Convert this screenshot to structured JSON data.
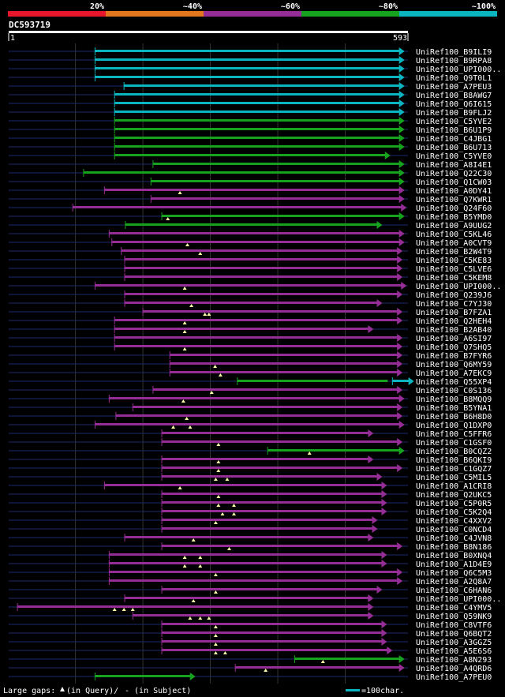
{
  "chart_data": {
    "type": "alignment-overview",
    "query": {
      "name": "DC593719",
      "start": 1,
      "end": 593
    },
    "identity_legend": [
      {
        "label": "20%",
        "color": "#e8162c"
      },
      {
        "label": "~40%",
        "color": "#e2761f"
      },
      {
        "label": "~60%",
        "color": "#952d96"
      },
      {
        "label": "~80%",
        "color": "#16a21e"
      },
      {
        "label": "~100%",
        "color": "#0ab5c0"
      }
    ],
    "hits": [
      {
        "name": "UniRef100_B9ILI9",
        "color": "#0ab5c0",
        "segs": [
          [
            129,
            588
          ]
        ],
        "tris": []
      },
      {
        "name": "UniRef100_B9RPA8",
        "color": "#0ab5c0",
        "segs": [
          [
            129,
            588
          ]
        ],
        "tris": []
      },
      {
        "name": "UniRef100_UPI000..",
        "color": "#0ab5c0",
        "segs": [
          [
            129,
            588
          ]
        ],
        "tris": []
      },
      {
        "name": "UniRef100_Q9T0L1",
        "color": "#0ab5c0",
        "segs": [
          [
            129,
            588
          ]
        ],
        "tris": []
      },
      {
        "name": "UniRef100_A7PEU3",
        "color": "#0ab5c0",
        "segs": [
          [
            172,
            588
          ]
        ],
        "tris": []
      },
      {
        "name": "UniRef100_B8AWG7",
        "color": "#0ab5c0",
        "segs": [
          [
            158,
            588
          ]
        ],
        "tris": []
      },
      {
        "name": "UniRef100_Q6I615",
        "color": "#0ab5c0",
        "segs": [
          [
            158,
            588
          ]
        ],
        "tris": []
      },
      {
        "name": "UniRef100_B9FLJ2",
        "color": "#0ab5c0",
        "segs": [
          [
            158,
            588
          ]
        ],
        "tris": []
      },
      {
        "name": "UniRef100_C5YVE2",
        "color": "#16a21e",
        "segs": [
          [
            158,
            588
          ]
        ],
        "tris": []
      },
      {
        "name": "UniRef100_B6U1P9",
        "color": "#16a21e",
        "segs": [
          [
            158,
            588
          ]
        ],
        "tris": []
      },
      {
        "name": "UniRef100_C4JBG1",
        "color": "#16a21e",
        "segs": [
          [
            158,
            588
          ]
        ],
        "tris": []
      },
      {
        "name": "UniRef100_B6U713",
        "color": "#16a21e",
        "segs": [
          [
            158,
            588
          ]
        ],
        "tris": []
      },
      {
        "name": "UniRef100_C5YVE0",
        "color": "#16a21e",
        "segs": [
          [
            158,
            567
          ]
        ],
        "tris": []
      },
      {
        "name": "UniRef100_A8I4E1",
        "color": "#16a21e",
        "segs": [
          [
            215,
            588
          ]
        ],
        "tris": []
      },
      {
        "name": "UniRef100_Q22C30",
        "color": "#16a21e",
        "segs": [
          [
            112,
            588
          ]
        ],
        "tris": []
      },
      {
        "name": "UniRef100_Q1CW03",
        "color": "#16a21e",
        "segs": [
          [
            212,
            588
          ]
        ],
        "tris": []
      },
      {
        "name": "UniRef100_A0DY41",
        "color": "#952d96",
        "segs": [
          [
            143,
            588
          ]
        ],
        "tris": [
          255
        ]
      },
      {
        "name": "UniRef100_Q7KWR1",
        "color": "#952d96",
        "segs": [
          [
            212,
            588
          ]
        ],
        "tris": []
      },
      {
        "name": "UniRef100_Q24F60",
        "color": "#952d96",
        "segs": [
          [
            96,
            591
          ]
        ],
        "tris": []
      },
      {
        "name": "UniRef100_B5YMD0",
        "color": "#16a21e",
        "segs": [
          [
            228,
            588
          ]
        ],
        "tris": [
          237
        ]
      },
      {
        "name": "UniRef100_A9UUG2",
        "color": "#16a21e",
        "segs": [
          [
            174,
            555
          ]
        ],
        "tris": []
      },
      {
        "name": "UniRef100_C5KL46",
        "color": "#952d96",
        "segs": [
          [
            150,
            588
          ]
        ],
        "tris": []
      },
      {
        "name": "UniRef100_A0CVT9",
        "color": "#952d96",
        "segs": [
          [
            154,
            588
          ]
        ],
        "tris": [
          266
        ]
      },
      {
        "name": "UniRef100_B2W4T9",
        "color": "#952d96",
        "segs": [
          [
            168,
            585
          ]
        ],
        "tris": [
          285
        ]
      },
      {
        "name": "UniRef100_C5KE83",
        "color": "#952d96",
        "segs": [
          [
            173,
            585
          ]
        ],
        "tris": []
      },
      {
        "name": "UniRef100_C5LVE6",
        "color": "#952d96",
        "segs": [
          [
            173,
            585
          ]
        ],
        "tris": []
      },
      {
        "name": "UniRef100_C5KEM8",
        "color": "#952d96",
        "segs": [
          [
            173,
            585
          ]
        ],
        "tris": []
      },
      {
        "name": "UniRef100_UPI000..",
        "color": "#952d96",
        "segs": [
          [
            129,
            591
          ]
        ],
        "tris": [
          262
        ]
      },
      {
        "name": "UniRef100_Q239J6",
        "color": "#952d96",
        "segs": [
          [
            173,
            585
          ]
        ],
        "tris": []
      },
      {
        "name": "UniRef100_C7YJ30",
        "color": "#952d96",
        "segs": [
          [
            173,
            555
          ]
        ],
        "tris": [
          272
        ]
      },
      {
        "name": "UniRef100_B7FZA1",
        "color": "#952d96",
        "segs": [
          [
            200,
            585
          ]
        ],
        "tris": [
          292,
          298
        ]
      },
      {
        "name": "UniRef100_Q2HEH4",
        "color": "#952d96",
        "segs": [
          [
            158,
            585
          ]
        ],
        "tris": [
          262
        ]
      },
      {
        "name": "UniRef100_B2AB40",
        "color": "#952d96",
        "segs": [
          [
            158,
            542
          ]
        ],
        "tris": [
          262
        ]
      },
      {
        "name": "UniRef100_A6SI97",
        "color": "#952d96",
        "segs": [
          [
            158,
            585
          ]
        ],
        "tris": []
      },
      {
        "name": "UniRef100_Q7SHQ5",
        "color": "#952d96",
        "segs": [
          [
            158,
            585
          ]
        ],
        "tris": [
          262
        ]
      },
      {
        "name": "UniRef100_B7FYR6",
        "color": "#952d96",
        "segs": [
          [
            240,
            585
          ]
        ],
        "tris": []
      },
      {
        "name": "UniRef100_Q6MY59",
        "color": "#952d96",
        "segs": [
          [
            240,
            585
          ]
        ],
        "tris": [
          307
        ]
      },
      {
        "name": "UniRef100_A7EKC9",
        "color": "#952d96",
        "segs": [
          [
            240,
            585
          ]
        ],
        "tris": [
          315
        ]
      },
      {
        "name": "UniRef100_Q55XP4",
        "color": "#16a21e",
        "segs": [
          [
            340,
            570
          ],
          [
            570,
            602
          ]
        ],
        "segColors": [
          "#16a21e",
          "#0ab5c0"
        ],
        "tris": []
      },
      {
        "name": "UniRef100_C0S136",
        "color": "#952d96",
        "segs": [
          [
            215,
            585
          ]
        ],
        "tris": [
          302
        ]
      },
      {
        "name": "UniRef100_B8MQQ9",
        "color": "#952d96",
        "segs": [
          [
            150,
            588
          ]
        ],
        "tris": [
          260
        ]
      },
      {
        "name": "UniRef100_B5YNA1",
        "color": "#952d96",
        "segs": [
          [
            185,
            585
          ]
        ],
        "tris": []
      },
      {
        "name": "UniRef100_B6H8D0",
        "color": "#952d96",
        "segs": [
          [
            160,
            585
          ]
        ],
        "tris": [
          265
        ]
      },
      {
        "name": "UniRef100_Q1DXP0",
        "color": "#952d96",
        "segs": [
          [
            129,
            588
          ]
        ],
        "tris": [
          245,
          270
        ]
      },
      {
        "name": "UniRef100_C5FFR6",
        "color": "#952d96",
        "segs": [
          [
            228,
            542
          ]
        ],
        "tris": []
      },
      {
        "name": "UniRef100_C1GSF0",
        "color": "#952d96",
        "segs": [
          [
            228,
            585
          ]
        ],
        "tris": [
          312
        ]
      },
      {
        "name": "UniRef100_B0CQZ2",
        "color": "#16a21e",
        "segs": [
          [
            385,
            588
          ]
        ],
        "tris": [
          447
        ]
      },
      {
        "name": "UniRef100_B6QKI9",
        "color": "#952d96",
        "segs": [
          [
            228,
            542
          ]
        ],
        "tris": [
          312
        ]
      },
      {
        "name": "UniRef100_C1GQZ7",
        "color": "#952d96",
        "segs": [
          [
            228,
            585
          ]
        ],
        "tris": [
          312
        ]
      },
      {
        "name": "UniRef100_C5MIL5",
        "color": "#952d96",
        "segs": [
          [
            228,
            555
          ]
        ],
        "tris": [
          308,
          325
        ]
      },
      {
        "name": "UniRef100_A1CRI8",
        "color": "#952d96",
        "segs": [
          [
            143,
            562
          ]
        ],
        "tris": [
          255
        ]
      },
      {
        "name": "UniRef100_Q2UKC5",
        "color": "#952d96",
        "segs": [
          [
            228,
            562
          ]
        ],
        "tris": [
          312
        ]
      },
      {
        "name": "UniRef100_C5P0R5",
        "color": "#952d96",
        "segs": [
          [
            228,
            562
          ]
        ],
        "tris": [
          312,
          335
        ]
      },
      {
        "name": "UniRef100_C5K2Q4",
        "color": "#952d96",
        "segs": [
          [
            228,
            562
          ]
        ],
        "tris": [
          318,
          335
        ]
      },
      {
        "name": "UniRef100_C4XXV2",
        "color": "#952d96",
        "segs": [
          [
            228,
            548
          ]
        ],
        "tris": [
          308
        ]
      },
      {
        "name": "UniRef100_C0NCD4",
        "color": "#952d96",
        "segs": [
          [
            228,
            548
          ]
        ],
        "tris": []
      },
      {
        "name": "UniRef100_C4JVN8",
        "color": "#952d96",
        "segs": [
          [
            173,
            542
          ]
        ],
        "tris": [
          275
        ]
      },
      {
        "name": "UniRef100_B8N186",
        "color": "#952d96",
        "segs": [
          [
            228,
            585
          ]
        ],
        "tris": [
          328
        ]
      },
      {
        "name": "UniRef100_B0XNQ4",
        "color": "#952d96",
        "segs": [
          [
            150,
            562
          ]
        ],
        "tris": [
          262,
          285
        ]
      },
      {
        "name": "UniRef100_A1D4E9",
        "color": "#952d96",
        "segs": [
          [
            150,
            562
          ]
        ],
        "tris": [
          262,
          285
        ]
      },
      {
        "name": "UniRef100_Q6C5M3",
        "color": "#952d96",
        "segs": [
          [
            150,
            585
          ]
        ],
        "tris": [
          308
        ]
      },
      {
        "name": "UniRef100_A2Q8A7",
        "color": "#952d96",
        "segs": [
          [
            150,
            585
          ]
        ],
        "tris": []
      },
      {
        "name": "UniRef100_C6HAN6",
        "color": "#952d96",
        "segs": [
          [
            228,
            555
          ]
        ],
        "tris": [
          308
        ]
      },
      {
        "name": "UniRef100_UPI000..",
        "color": "#952d96",
        "segs": [
          [
            173,
            542
          ]
        ],
        "tris": [
          275
        ]
      },
      {
        "name": "UniRef100_C4YMV5",
        "color": "#952d96",
        "segs": [
          [
            14,
            542
          ]
        ],
        "tris": [
          158,
          172,
          185
        ]
      },
      {
        "name": "UniRef100_Q59NK9",
        "color": "#952d96",
        "segs": [
          [
            185,
            542
          ]
        ],
        "tris": [
          270,
          285,
          298
        ]
      },
      {
        "name": "UniRef100_C8VTF6",
        "color": "#952d96",
        "segs": [
          [
            228,
            562
          ]
        ],
        "tris": [
          308
        ]
      },
      {
        "name": "UniRef100_Q6BQT2",
        "color": "#952d96",
        "segs": [
          [
            228,
            562
          ]
        ],
        "tris": [
          308
        ]
      },
      {
        "name": "UniRef100_A3GGZ5",
        "color": "#952d96",
        "segs": [
          [
            228,
            562
          ]
        ],
        "tris": [
          308
        ]
      },
      {
        "name": "UniRef100_A5E6S6",
        "color": "#952d96",
        "segs": [
          [
            228,
            570
          ]
        ],
        "tris": [
          308,
          322
        ]
      },
      {
        "name": "UniRef100_A8N293",
        "color": "#16a21e",
        "segs": [
          [
            425,
            588
          ]
        ],
        "tris": [
          467
        ]
      },
      {
        "name": "UniRef100_A4QRD6",
        "color": "#952d96",
        "segs": [
          [
            337,
            588
          ]
        ],
        "tris": [
          382
        ]
      },
      {
        "name": "UniRef100_A7PEU0",
        "color": "#16a21e",
        "segs": [
          [
            129,
            278
          ]
        ],
        "tris": []
      }
    ]
  },
  "footer": {
    "large_gaps_prefix": "Large gaps:",
    "large_gaps_query": "(in Query)/",
    "large_gaps_subject": "- (in Subject)",
    "scale_label": "=100char.",
    "scale_color": "#0ab5c0"
  }
}
